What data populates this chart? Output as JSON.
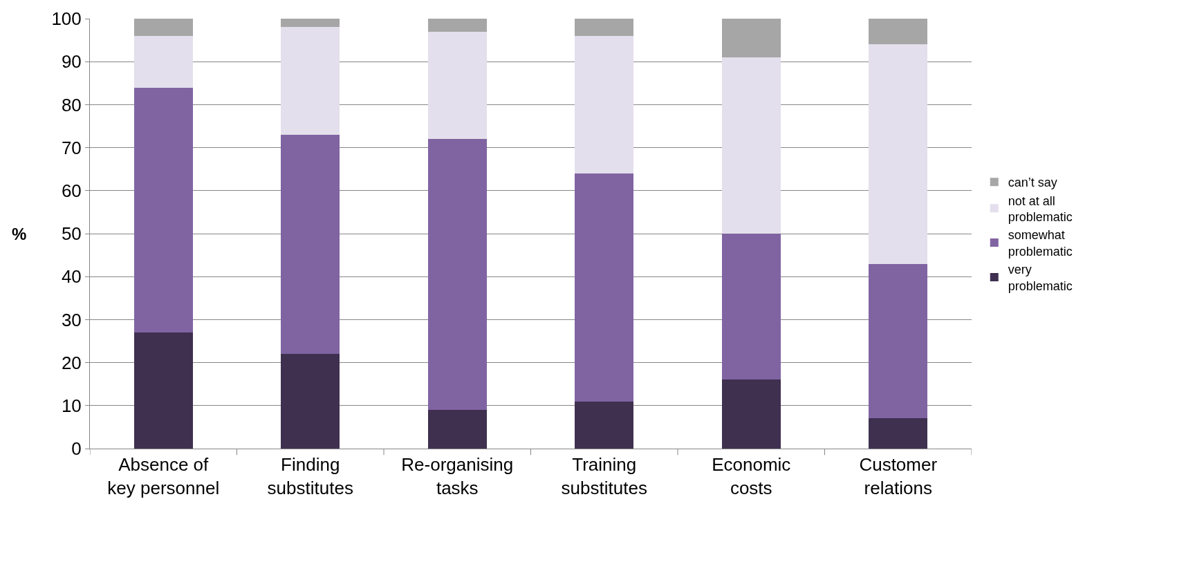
{
  "chart_data": {
    "type": "bar",
    "stacked": true,
    "ylabel": "%",
    "categories": [
      "Absence of key personnel",
      "Finding substitutes",
      "Re-organising tasks",
      "Training substitutes",
      "Economic costs",
      "Customer relations"
    ],
    "series": [
      {
        "name": "very problematic",
        "color": "#3f3050",
        "values": [
          27,
          22,
          9,
          11,
          16,
          7
        ]
      },
      {
        "name": "somewhat problematic",
        "color": "#8064a2",
        "values": [
          57,
          51,
          63,
          53,
          34,
          36
        ]
      },
      {
        "name": "not at all problematic",
        "color": "#e4dfec",
        "values": [
          12,
          25,
          25,
          32,
          41,
          51
        ]
      },
      {
        "name": "can’t say",
        "color": "#a6a6a6",
        "values": [
          4,
          2,
          3,
          4,
          9,
          6
        ]
      }
    ],
    "ylim": [
      0,
      100
    ],
    "yticks": [
      0,
      10,
      20,
      30,
      40,
      50,
      60,
      70,
      80,
      90,
      100
    ],
    "grid": "y",
    "legend": "right"
  }
}
